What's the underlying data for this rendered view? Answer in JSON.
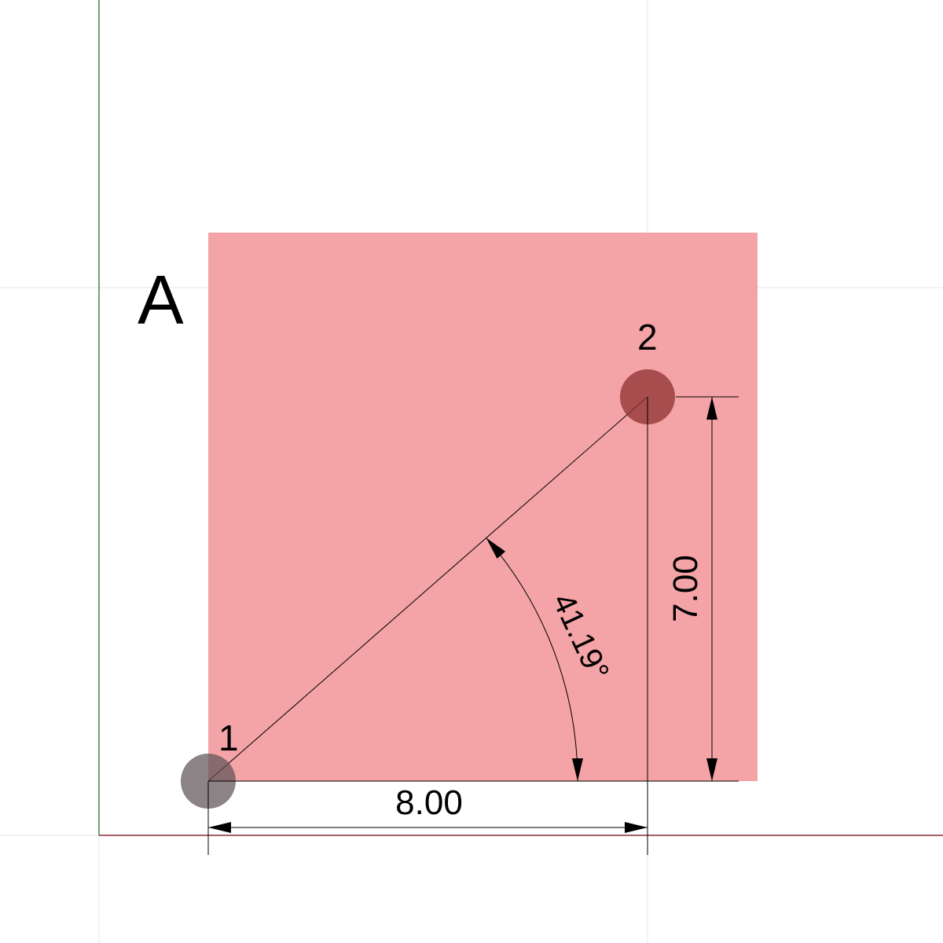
{
  "colors": {
    "background": "#ffffff",
    "grid": "#e6e6e6",
    "y_axis": "#3a8a3a",
    "x_axis": "#8b2a3a",
    "region_fill": "#f4a3a6",
    "point_1_fill": "#5e5357",
    "point_2_fill": "#923434",
    "dimension": "#000000"
  },
  "region": {
    "label": "A"
  },
  "points": [
    {
      "label": "1",
      "x": 0,
      "y": 0
    },
    {
      "label": "2",
      "x": 8,
      "y": 7
    }
  ],
  "dimensions": {
    "horizontal": {
      "value": 8,
      "text": "8.00"
    },
    "vertical": {
      "value": 7,
      "text": "7.00"
    },
    "angle": {
      "value": 41.19,
      "text": "41.19°"
    }
  }
}
